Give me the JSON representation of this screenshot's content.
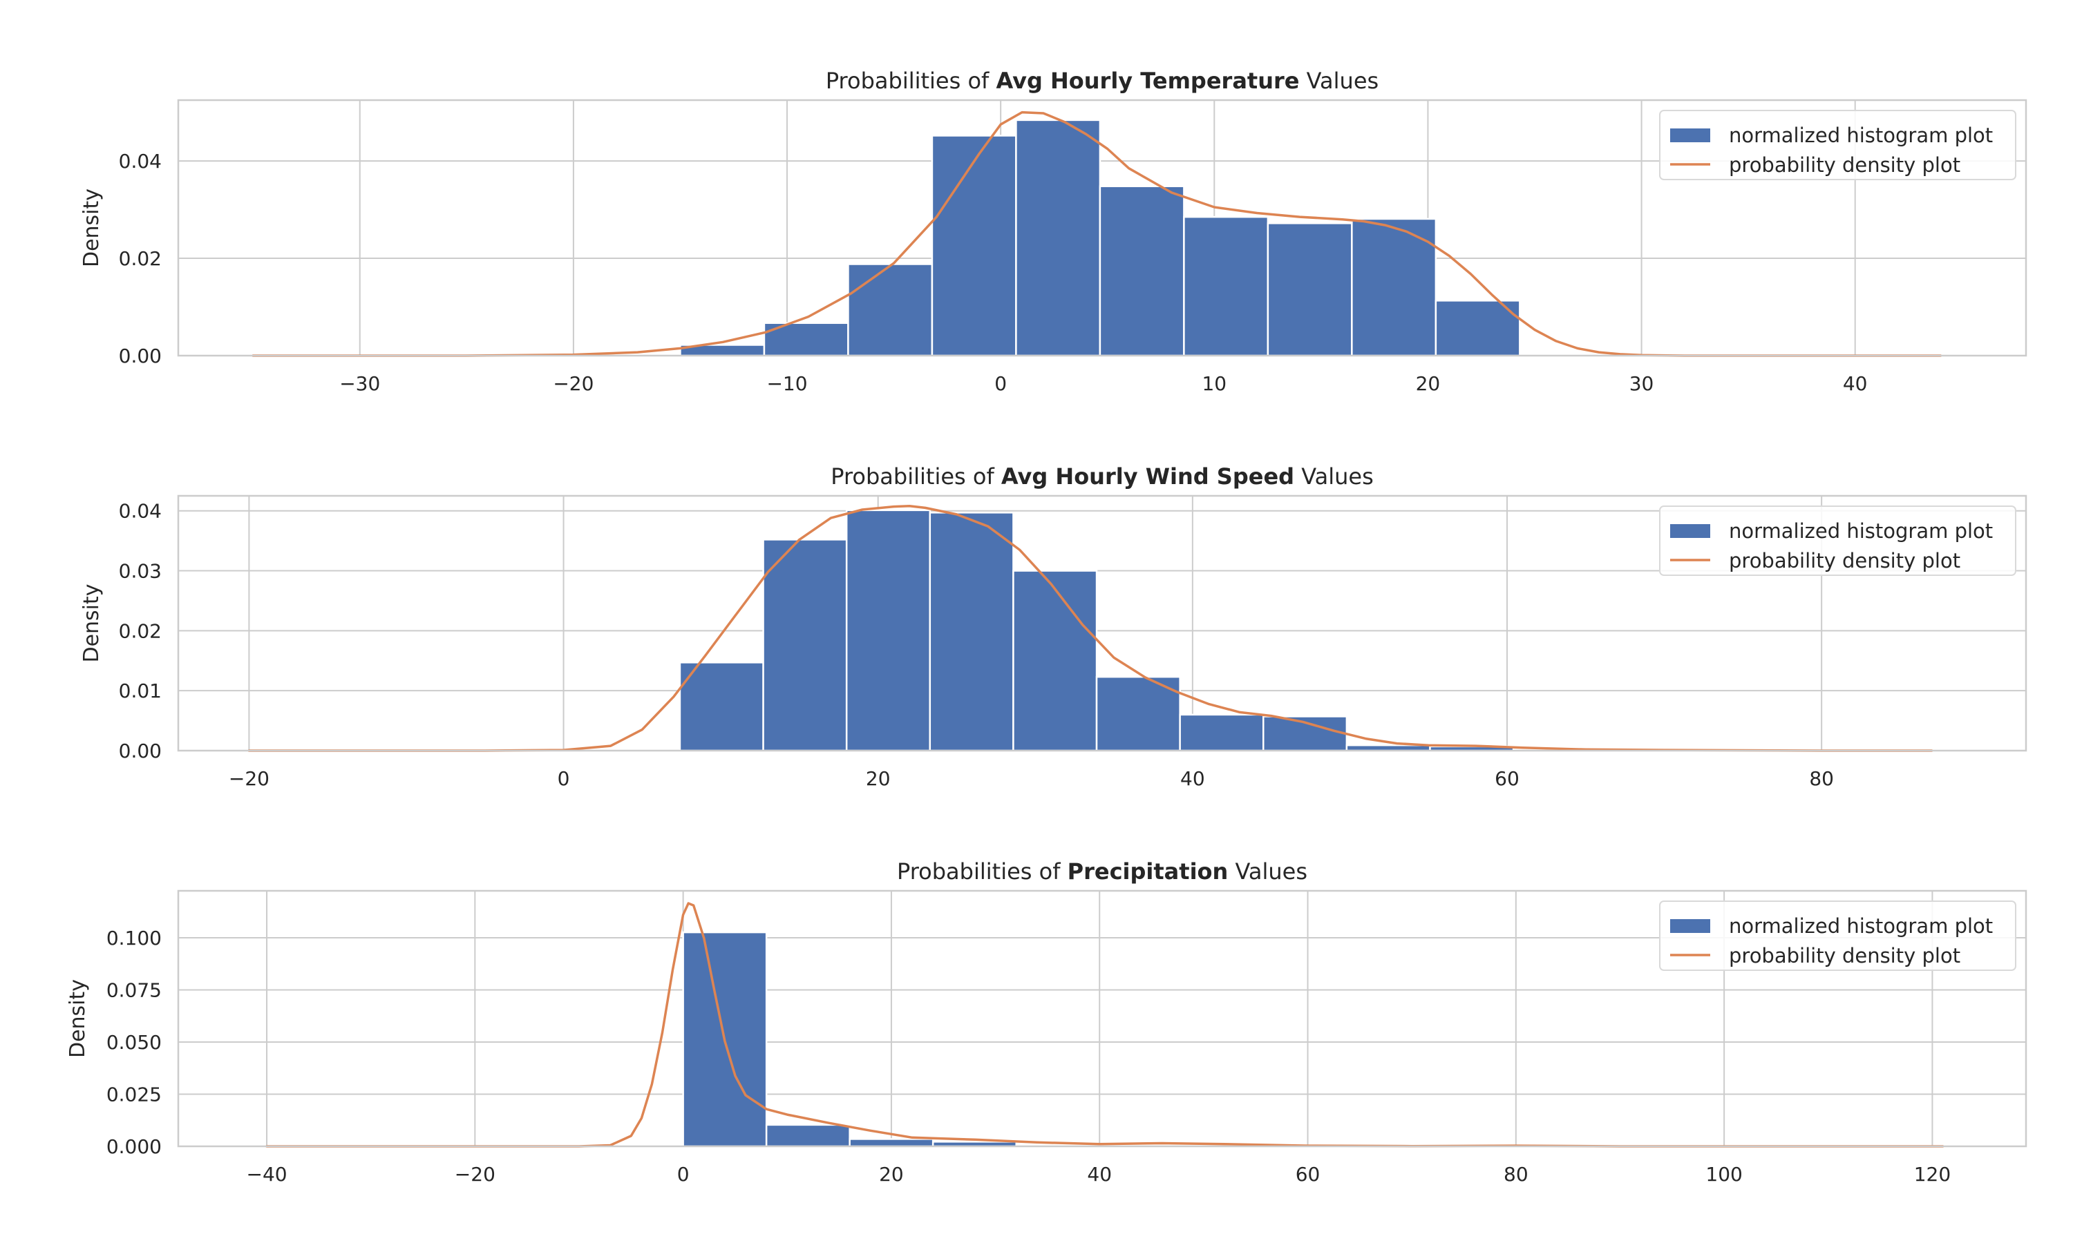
{
  "colors": {
    "histogram": "#4c72b0",
    "density": "#dd8452",
    "grid": "#cccccc",
    "background": "#ffffff"
  },
  "chart_data": [
    {
      "type": "bar",
      "title_prefix": "Probabilities of ",
      "title_bold": "Avg Hourly Temperature",
      "title_suffix": " Values",
      "xlabel": "",
      "ylabel": "Density",
      "xlim": [
        -38.5,
        48
      ],
      "ylim": [
        0,
        0.0525
      ],
      "xticks": [
        -30,
        -20,
        -10,
        0,
        10,
        20,
        30,
        40
      ],
      "xtick_labels": [
        "−30",
        "−20",
        "−10",
        "0",
        "10",
        "20",
        "30",
        "40"
      ],
      "yticks": [
        0,
        0.02,
        0.04
      ],
      "ytick_labels": [
        "0.00",
        "0.02",
        "0.04"
      ],
      "grid": true,
      "legend_position": "top-right",
      "legend": [
        "normalized histogram plot",
        "probability density plot"
      ],
      "histogram": {
        "name": "normalized histogram plot",
        "bin_edges": [
          -15.0,
          -11.07,
          -7.14,
          -3.21,
          0.72,
          4.65,
          8.58,
          12.51,
          16.44,
          20.37,
          24.3
        ],
        "values": [
          0.0022,
          0.0067,
          0.0188,
          0.0452,
          0.0484,
          0.0348,
          0.0285,
          0.0272,
          0.0281,
          0.0113
        ]
      },
      "density": {
        "name": "probability density plot",
        "x": [
          -35,
          -25,
          -20,
          -17,
          -15,
          -13,
          -11,
          -9,
          -7,
          -5,
          -3,
          -1,
          0,
          1,
          2,
          3,
          4,
          5,
          6,
          8,
          10,
          12,
          14,
          16,
          17,
          18,
          19,
          20,
          21,
          22,
          23,
          24,
          25,
          26,
          27,
          28,
          29,
          30,
          32,
          35,
          40,
          44
        ],
        "y": [
          0,
          0,
          0.0002,
          0.0007,
          0.0015,
          0.0028,
          0.0048,
          0.008,
          0.0128,
          0.019,
          0.0285,
          0.0415,
          0.0475,
          0.05,
          0.0498,
          0.048,
          0.0455,
          0.0425,
          0.0385,
          0.0335,
          0.0305,
          0.0293,
          0.0285,
          0.028,
          0.0276,
          0.0268,
          0.0255,
          0.0234,
          0.0205,
          0.0168,
          0.0125,
          0.0085,
          0.0053,
          0.003,
          0.0015,
          0.0007,
          0.0003,
          0.0001,
          0,
          0,
          0,
          0
        ]
      }
    },
    {
      "type": "bar",
      "title_prefix": "Probabilities of ",
      "title_bold": "Avg Hourly Wind Speed",
      "title_suffix": " Values",
      "xlabel": "",
      "ylabel": "Density",
      "xlim": [
        -24.5,
        93
      ],
      "ylim": [
        0,
        0.0425
      ],
      "xticks": [
        -20,
        0,
        20,
        40,
        60,
        80
      ],
      "xtick_labels": [
        "−20",
        "0",
        "20",
        "40",
        "60",
        "80"
      ],
      "yticks": [
        0,
        0.01,
        0.02,
        0.03,
        0.04
      ],
      "ytick_labels": [
        "0.00",
        "0.01",
        "0.02",
        "0.03",
        "0.04"
      ],
      "grid": true,
      "legend_position": "top-right",
      "legend": [
        "normalized histogram plot",
        "probability density plot"
      ],
      "histogram": {
        "name": "normalized histogram plot",
        "bin_edges": [
          7.4,
          12.7,
          18.0,
          23.3,
          28.6,
          33.9,
          39.2,
          44.5,
          49.8,
          55.1,
          60.4
        ],
        "values": [
          0.0147,
          0.0352,
          0.0401,
          0.0397,
          0.03,
          0.0123,
          0.006,
          0.0057,
          0.0009,
          0.0007
        ]
      },
      "density": {
        "name": "probability density plot",
        "x": [
          -20,
          -5,
          0,
          3,
          5,
          7,
          9,
          11,
          13,
          15,
          17,
          19,
          21,
          22,
          23,
          25,
          27,
          29,
          31,
          33,
          35,
          37,
          39,
          41,
          43,
          45,
          47,
          49,
          51,
          53,
          55,
          58,
          61,
          65,
          70,
          80,
          87
        ],
        "y": [
          0,
          0,
          0.0001,
          0.0008,
          0.0035,
          0.009,
          0.0158,
          0.0228,
          0.0298,
          0.0352,
          0.0388,
          0.0402,
          0.0407,
          0.0408,
          0.0405,
          0.0394,
          0.0374,
          0.0335,
          0.0278,
          0.021,
          0.0155,
          0.0122,
          0.0098,
          0.0078,
          0.0064,
          0.0058,
          0.0048,
          0.0033,
          0.002,
          0.0012,
          0.0009,
          0.0008,
          0.0005,
          0.0002,
          0.0001,
          0,
          0
        ]
      }
    },
    {
      "type": "bar",
      "title_prefix": "Probabilities of ",
      "title_bold": "Precipitation",
      "title_suffix": " Values",
      "xlabel": "",
      "ylabel": "Density",
      "xlim": [
        -48.5,
        129
      ],
      "ylim": [
        0,
        0.1225
      ],
      "xticks": [
        -40,
        -20,
        0,
        20,
        40,
        60,
        80,
        100,
        120
      ],
      "xtick_labels": [
        "−40",
        "−20",
        "0",
        "20",
        "40",
        "60",
        "80",
        "100",
        "120"
      ],
      "yticks": [
        0,
        0.025,
        0.05,
        0.075,
        0.1
      ],
      "ytick_labels": [
        "0.000",
        "0.025",
        "0.050",
        "0.075",
        "0.100"
      ],
      "grid": true,
      "legend_position": "top-right",
      "legend": [
        "normalized histogram plot",
        "probability density plot"
      ],
      "histogram": {
        "name": "normalized histogram plot",
        "bin_edges": [
          0,
          8,
          16,
          24,
          32,
          40,
          48,
          56,
          64,
          72,
          80
        ],
        "values": [
          0.1026,
          0.0103,
          0.0035,
          0.0022,
          0.0007,
          0.0004,
          0.0003,
          0.0001,
          0.0001,
          0.0001
        ]
      },
      "density": {
        "name": "probability density plot",
        "x": [
          -40,
          -10,
          -7,
          -5,
          -4,
          -3,
          -2,
          -1,
          0,
          0.5,
          1,
          2,
          3,
          4,
          5,
          6,
          8,
          10,
          14,
          18,
          22,
          28,
          34,
          40,
          46,
          52,
          60,
          70,
          80,
          90,
          100,
          121
        ],
        "y": [
          0,
          0,
          0.0005,
          0.005,
          0.0135,
          0.0298,
          0.0545,
          0.0848,
          0.111,
          0.1165,
          0.1155,
          0.0998,
          0.0748,
          0.0505,
          0.0338,
          0.0245,
          0.0178,
          0.0152,
          0.0112,
          0.0075,
          0.0042,
          0.0032,
          0.0019,
          0.0011,
          0.0015,
          0.0011,
          0.0003,
          0.0001,
          0.0003,
          0,
          0,
          0
        ]
      }
    }
  ]
}
